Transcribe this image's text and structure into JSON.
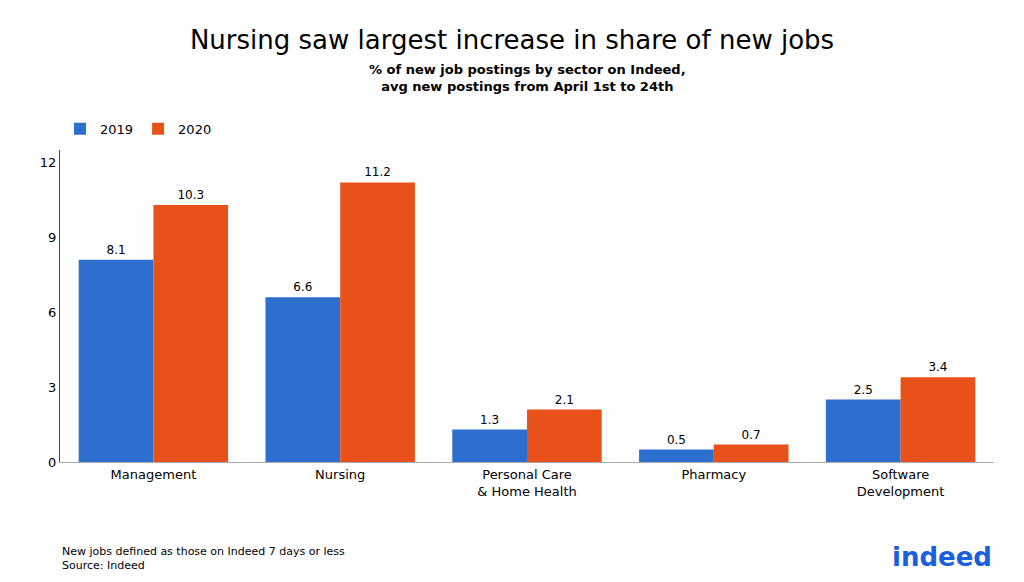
{
  "chart_data": {
    "type": "bar",
    "title": "Nursing saw largest increase in share of new jobs",
    "subtitle": "% of new job postings by sector on Indeed,\navg new postings from April 1st to 24th",
    "categories": [
      "Management",
      "Nursing",
      "Personal Care\n& Home Health",
      "Pharmacy",
      "Software\nDevelopment"
    ],
    "series": [
      {
        "name": "2019",
        "color": "#2c6fce",
        "values": [
          8.1,
          6.6,
          1.3,
          0.5,
          2.5
        ]
      },
      {
        "name": "2020",
        "color": "#e8521a",
        "values": [
          10.3,
          11.2,
          2.1,
          0.7,
          3.4
        ]
      }
    ],
    "ylim": [
      0,
      12.5
    ],
    "yticks": [
      0,
      3,
      6,
      9,
      12
    ],
    "grid": false,
    "legend": "upper left",
    "data_labels": true,
    "annotations": [
      {
        "text": "New jobs defined as those on Indeed 7 days or less\nSource: Indeed"
      },
      {
        "text": "indeed",
        "color": "#1a5fe0"
      }
    ]
  }
}
